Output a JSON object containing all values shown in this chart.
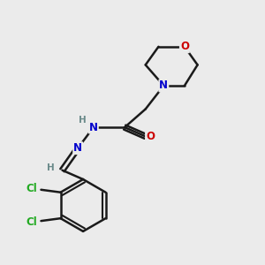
{
  "bg_color": "#ebebeb",
  "bond_color": "#1a1a1a",
  "bond_width": 1.8,
  "atom_colors": {
    "C": "#1a1a1a",
    "H": "#6a8a8a",
    "N": "#0000cc",
    "O": "#cc0000",
    "Cl": "#22aa22"
  },
  "font_size": 8.5,
  "fig_width": 3.0,
  "fig_height": 3.0,
  "dpi": 100
}
